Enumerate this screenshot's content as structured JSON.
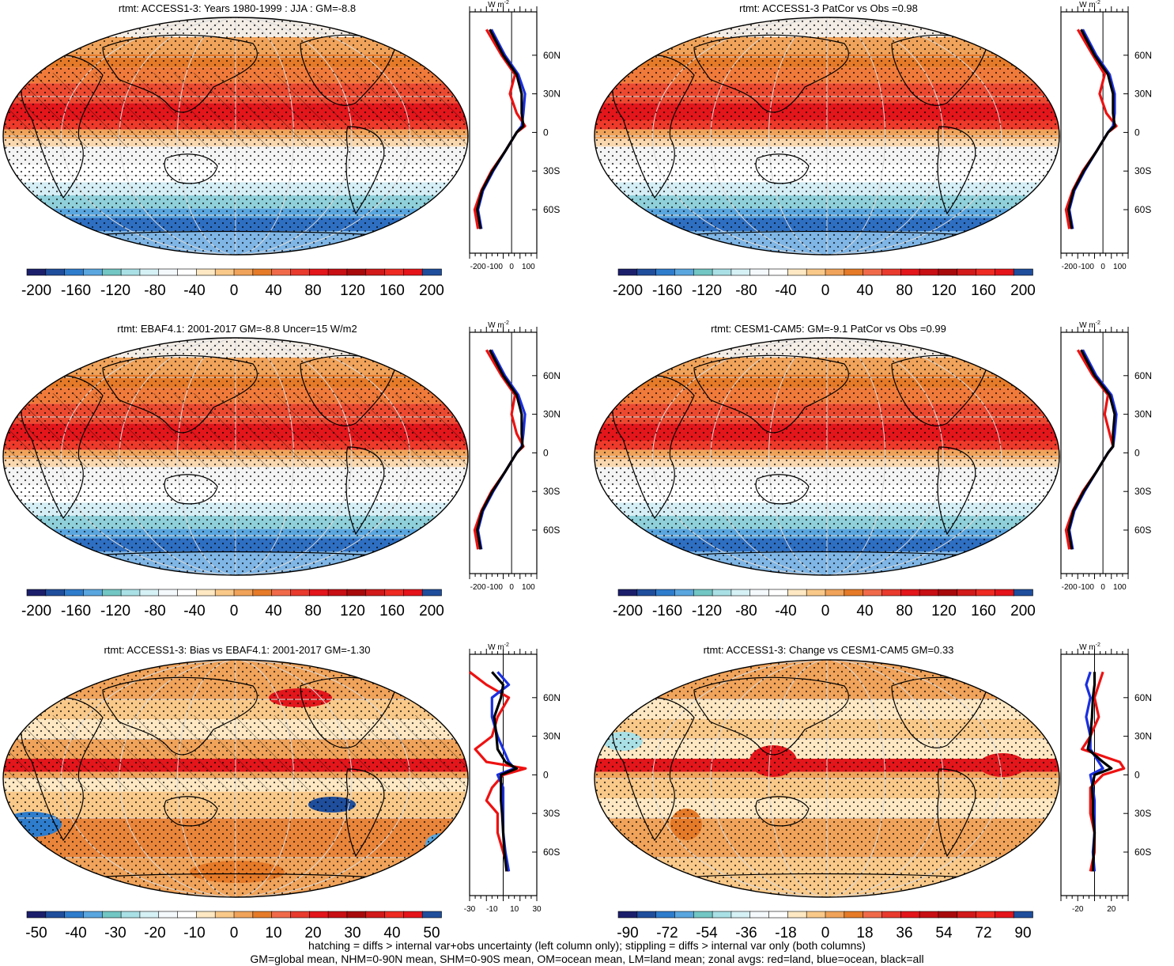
{
  "units_label": "W m",
  "units_sup": "-2",
  "lat_ticks": [
    "60N",
    "30N",
    "0",
    "30S",
    "60S"
  ],
  "panels": [
    {
      "title": "rtmt: ACCESS1-3: Years 1980-1999 : JJA : GM=-8.8",
      "colorbar_labels": [
        "-200",
        "-160",
        "-120",
        "-80",
        "-40",
        "0",
        "40",
        "80",
        "120",
        "160",
        "200"
      ],
      "zonal_ticks": [
        "-200",
        "-100",
        "0",
        "100"
      ],
      "hatched": true,
      "kind": "clim"
    },
    {
      "title": "rtmt: ACCESS1-3 PatCor vs Obs =0.98",
      "colorbar_labels": [
        "-200",
        "-160",
        "-120",
        "-80",
        "-40",
        "0",
        "40",
        "80",
        "120",
        "160",
        "200"
      ],
      "zonal_ticks": [
        "-200",
        "-100",
        "0",
        "100"
      ],
      "hatched": false,
      "kind": "clim"
    },
    {
      "title": "rtmt: EBAF4.1: 2001-2017 GM=-8.8 Uncer=15 W/m2",
      "colorbar_labels": [
        "-200",
        "-160",
        "-120",
        "-80",
        "-40",
        "0",
        "40",
        "80",
        "120",
        "160",
        "200"
      ],
      "zonal_ticks": [
        "-200",
        "-100",
        "0",
        "100"
      ],
      "hatched": true,
      "kind": "clim"
    },
    {
      "title": "rtmt: CESM1-CAM5: GM=-9.1 PatCor vs Obs =0.99",
      "colorbar_labels": [
        "-200",
        "-160",
        "-120",
        "-80",
        "-40",
        "0",
        "40",
        "80",
        "120",
        "160",
        "200"
      ],
      "zonal_ticks": [
        "-200",
        "-100",
        "0",
        "100"
      ],
      "hatched": false,
      "kind": "clim"
    },
    {
      "title": "rtmt: ACCESS1-3: Bias vs EBAF4.1: 2001-2017 GM=-1.30",
      "colorbar_labels": [
        "-50",
        "-40",
        "-30",
        "-20",
        "-10",
        "0",
        "10",
        "20",
        "30",
        "40",
        "50"
      ],
      "zonal_ticks": [
        "-30",
        "-10",
        "10",
        "30"
      ],
      "hatched": true,
      "kind": "bias"
    },
    {
      "title": "rtmt: ACCESS1-3: Change vs CESM1-CAM5 GM=0.33",
      "colorbar_labels": [
        "-90",
        "-72",
        "-54",
        "-36",
        "-18",
        "0",
        "18",
        "36",
        "54",
        "72",
        "90"
      ],
      "zonal_ticks": [
        "-20",
        "20"
      ],
      "hatched": false,
      "kind": "change"
    }
  ],
  "colorbar_colors": [
    "#1b1f6b",
    "#1f4e9c",
    "#2e7ccc",
    "#5aa6df",
    "#72c6c4",
    "#a9e0e6",
    "#d6f1f5",
    "#f4f9fb",
    "#ffffff",
    "#fde8c3",
    "#f9c98a",
    "#f0a35a",
    "#e57a28",
    "#f06a4a",
    "#e93a2e",
    "#e3161b",
    "#c80f14",
    "#a80a0c",
    "#d21a1a",
    "#ee2a23",
    "#e4141a",
    "#1f4e9c"
  ],
  "footer": [
    "hatching = diffs > internal var+obs uncertainty (left column only); stippling = diffs > internal var only (both columns)",
    "GM=global mean, NHM=0-90N mean, SHM=0-90S mean, OM=ocean mean, LM=land mean; zonal avgs: red=land, blue=ocean, black=all"
  ],
  "chart_data": [
    {
      "type": "map+line",
      "title": "rtmt: ACCESS1-3: Years 1980-1999 : JJA : GM=-8.8",
      "lat_labels": [
        "60N",
        "30N",
        "0",
        "30S",
        "60S"
      ],
      "zonal_x_ticks": [
        -200,
        -100,
        0,
        100
      ],
      "series": [
        {
          "name": "land",
          "color": "red",
          "lat": [
            80,
            60,
            45,
            30,
            15,
            5,
            0,
            -15,
            -30,
            -45,
            -60,
            -75
          ],
          "values": [
            -150,
            -60,
            20,
            -10,
            30,
            80,
            30,
            -40,
            -120,
            -180,
            -220,
            -200
          ]
        },
        {
          "name": "ocean",
          "color": "blue",
          "lat": [
            80,
            60,
            45,
            30,
            15,
            5,
            0,
            -15,
            -30,
            -45,
            -60,
            -75
          ],
          "values": [
            -120,
            -40,
            40,
            80,
            70,
            60,
            30,
            -40,
            -110,
            -170,
            -200,
            -180
          ]
        },
        {
          "name": "all",
          "color": "black",
          "lat": [
            80,
            60,
            45,
            30,
            15,
            5,
            0,
            -15,
            -30,
            -45,
            -60,
            -75
          ],
          "values": [
            -130,
            -50,
            30,
            60,
            60,
            70,
            30,
            -40,
            -115,
            -175,
            -205,
            -185
          ]
        }
      ]
    },
    {
      "type": "map+line",
      "title": "rtmt: ACCESS1-3 PatCor vs Obs =0.98",
      "lat_labels": [
        "60N",
        "30N",
        "0",
        "30S",
        "60S"
      ],
      "zonal_x_ticks": [
        -200,
        -100,
        0,
        100
      ],
      "series": [
        {
          "name": "land",
          "color": "red",
          "lat": [
            80,
            60,
            45,
            30,
            15,
            5,
            0,
            -15,
            -30,
            -45,
            -60,
            -75
          ],
          "values": [
            -150,
            -60,
            10,
            -20,
            20,
            80,
            30,
            -40,
            -120,
            -180,
            -220,
            -200
          ]
        },
        {
          "name": "ocean",
          "color": "blue",
          "lat": [
            80,
            60,
            45,
            30,
            15,
            5,
            0,
            -15,
            -30,
            -45,
            -60,
            -75
          ],
          "values": [
            -120,
            -40,
            40,
            70,
            70,
            60,
            30,
            -40,
            -110,
            -170,
            -200,
            -180
          ]
        },
        {
          "name": "all",
          "color": "black",
          "lat": [
            80,
            60,
            45,
            30,
            15,
            5,
            0,
            -15,
            -30,
            -45,
            -60,
            -75
          ],
          "values": [
            -130,
            -50,
            30,
            60,
            60,
            70,
            30,
            -40,
            -115,
            -175,
            -205,
            -185
          ]
        }
      ]
    },
    {
      "type": "map+line",
      "title": "rtmt: EBAF4.1: 2001-2017 GM=-8.8 Uncer=15 W/m2",
      "lat_labels": [
        "60N",
        "30N",
        "0",
        "30S",
        "60S"
      ],
      "zonal_x_ticks": [
        -200,
        -100,
        0,
        100
      ],
      "series": [
        {
          "name": "land",
          "color": "red",
          "lat": [
            80,
            60,
            45,
            30,
            15,
            5,
            0,
            -15,
            -30,
            -45,
            -60,
            -75
          ],
          "values": [
            -150,
            -60,
            20,
            0,
            30,
            70,
            30,
            -40,
            -120,
            -180,
            -220,
            -200
          ]
        },
        {
          "name": "ocean",
          "color": "blue",
          "lat": [
            80,
            60,
            45,
            30,
            15,
            5,
            0,
            -15,
            -30,
            -45,
            -60,
            -75
          ],
          "values": [
            -120,
            -40,
            40,
            80,
            70,
            60,
            30,
            -40,
            -110,
            -170,
            -200,
            -180
          ]
        },
        {
          "name": "all",
          "color": "black",
          "lat": [
            80,
            60,
            45,
            30,
            15,
            5,
            0,
            -15,
            -30,
            -45,
            -60,
            -75
          ],
          "values": [
            -130,
            -50,
            30,
            60,
            60,
            65,
            30,
            -40,
            -115,
            -175,
            -205,
            -185
          ]
        }
      ]
    },
    {
      "type": "map+line",
      "title": "rtmt: CESM1-CAM5: GM=-9.1 PatCor vs Obs =0.99",
      "lat_labels": [
        "60N",
        "30N",
        "0",
        "30S",
        "60S"
      ],
      "zonal_x_ticks": [
        -200,
        -100,
        0,
        100
      ],
      "series": [
        {
          "name": "land",
          "color": "red",
          "lat": [
            80,
            60,
            45,
            30,
            15,
            5,
            0,
            -15,
            -30,
            -45,
            -60,
            -75
          ],
          "values": [
            -150,
            -60,
            30,
            10,
            40,
            60,
            30,
            -40,
            -120,
            -180,
            -220,
            -200
          ]
        },
        {
          "name": "ocean",
          "color": "blue",
          "lat": [
            80,
            60,
            45,
            30,
            15,
            5,
            0,
            -15,
            -30,
            -45,
            -60,
            -75
          ],
          "values": [
            -120,
            -40,
            50,
            80,
            70,
            60,
            30,
            -40,
            -110,
            -170,
            -200,
            -180
          ]
        },
        {
          "name": "all",
          "color": "black",
          "lat": [
            80,
            60,
            45,
            30,
            15,
            5,
            0,
            -15,
            -30,
            -45,
            -60,
            -75
          ],
          "values": [
            -130,
            -50,
            40,
            70,
            60,
            60,
            30,
            -40,
            -115,
            -175,
            -205,
            -185
          ]
        }
      ]
    },
    {
      "type": "map+line",
      "title": "rtmt: ACCESS1-3: Bias vs EBAF4.1: 2001-2017 GM=-1.30",
      "lat_labels": [
        "60N",
        "30N",
        "0",
        "30S",
        "60S"
      ],
      "zonal_x_ticks": [
        -30,
        -10,
        10,
        30
      ],
      "series": [
        {
          "name": "land",
          "color": "red",
          "lat": [
            80,
            70,
            60,
            45,
            30,
            20,
            10,
            5,
            0,
            -10,
            -20,
            -30,
            -45,
            -60,
            -75
          ],
          "values": [
            -30,
            -15,
            5,
            -5,
            -10,
            -25,
            -15,
            20,
            0,
            -10,
            -15,
            -5,
            -5,
            0,
            5
          ]
        },
        {
          "name": "ocean",
          "color": "blue",
          "lat": [
            80,
            70,
            60,
            45,
            30,
            20,
            10,
            5,
            0,
            -10,
            -20,
            -30,
            -45,
            -60,
            -75
          ],
          "values": [
            -5,
            5,
            -10,
            -10,
            -5,
            0,
            5,
            10,
            -5,
            0,
            0,
            0,
            0,
            2,
            5
          ]
        },
        {
          "name": "all",
          "color": "black",
          "lat": [
            80,
            70,
            60,
            45,
            30,
            20,
            10,
            5,
            0,
            -10,
            -20,
            -30,
            -45,
            -60,
            -75
          ],
          "values": [
            -10,
            0,
            -2,
            -8,
            -6,
            -5,
            2,
            12,
            -2,
            -2,
            -2,
            -1,
            0,
            1,
            3
          ]
        }
      ]
    },
    {
      "type": "map+line",
      "title": "rtmt: ACCESS1-3: Change vs CESM1-CAM5 GM=0.33",
      "lat_labels": [
        "60N",
        "30N",
        "0",
        "30S",
        "60S"
      ],
      "zonal_x_ticks": [
        -20,
        20
      ],
      "series": [
        {
          "name": "land",
          "color": "red",
          "lat": [
            80,
            70,
            60,
            45,
            30,
            20,
            10,
            5,
            0,
            -10,
            -20,
            -30,
            -45,
            -60,
            -75
          ],
          "values": [
            10,
            5,
            0,
            5,
            -5,
            -15,
            30,
            35,
            10,
            -5,
            -5,
            -5,
            0,
            0,
            -5
          ]
        },
        {
          "name": "ocean",
          "color": "blue",
          "lat": [
            80,
            70,
            60,
            45,
            30,
            20,
            10,
            5,
            0,
            -10,
            -20,
            -30,
            -45,
            -60,
            -75
          ],
          "values": [
            -5,
            -10,
            -5,
            -10,
            -5,
            -5,
            5,
            10,
            -5,
            -2,
            0,
            0,
            0,
            -2,
            0
          ]
        },
        {
          "name": "all",
          "color": "black",
          "lat": [
            80,
            70,
            60,
            45,
            30,
            20,
            10,
            5,
            0,
            -10,
            -20,
            -30,
            -45,
            -60,
            -75
          ],
          "values": [
            0,
            0,
            -2,
            -3,
            -5,
            -8,
            10,
            20,
            0,
            -3,
            -2,
            -2,
            0,
            -1,
            -2
          ]
        }
      ]
    }
  ]
}
